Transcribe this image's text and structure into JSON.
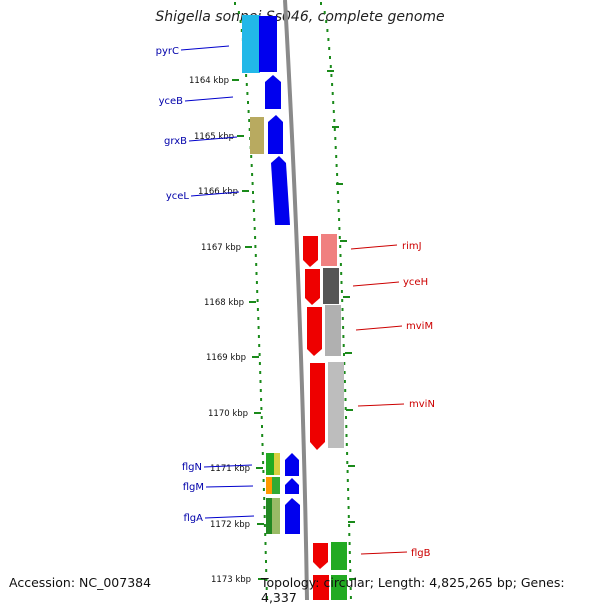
{
  "title": "Shigella sonnei Ss046, complete genome",
  "footer": {
    "accession": "Accession: NC_007384",
    "summary": "Topology: circular; Length: 4,825,265 bp; Genes: 4,337"
  },
  "colors": {
    "forward": "#0000ee",
    "reverse": "#ee0000",
    "ruler": "#1a8a1a",
    "backbone": "#888888"
  },
  "ticks": [
    {
      "label": "1164 kbp"
    },
    {
      "label": "1165 kbp"
    },
    {
      "label": "1166 kbp"
    },
    {
      "label": "1167 kbp"
    },
    {
      "label": "1168 kbp"
    },
    {
      "label": "1169 kbp"
    },
    {
      "label": "1170 kbp"
    },
    {
      "label": "1171 kbp"
    },
    {
      "label": "1172 kbp"
    },
    {
      "label": "1173 kbp"
    }
  ],
  "genes_left": [
    {
      "name": "pyrC"
    },
    {
      "name": "yceB"
    },
    {
      "name": "grxB"
    },
    {
      "name": "yceL"
    },
    {
      "name": "flgN"
    },
    {
      "name": "flgM"
    },
    {
      "name": "flgA"
    }
  ],
  "genes_right": [
    {
      "name": "rimJ"
    },
    {
      "name": "yceH"
    },
    {
      "name": "mviM"
    },
    {
      "name": "mviN"
    },
    {
      "name": "flgB"
    }
  ]
}
